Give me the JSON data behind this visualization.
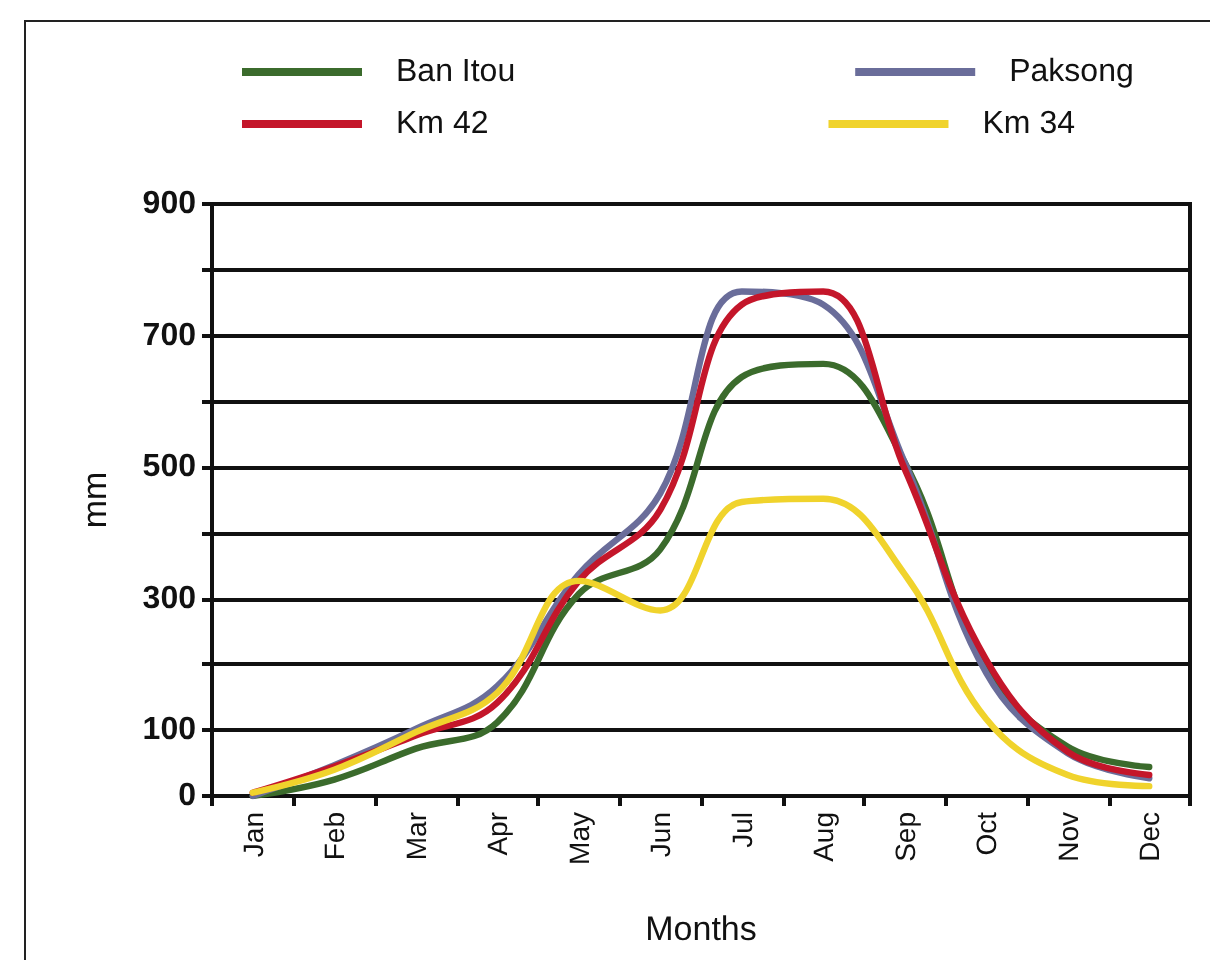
{
  "chart_data": {
    "type": "line",
    "xlabel": "Months",
    "ylabel": "mm",
    "categories": [
      "Jan",
      "Feb",
      "Mar",
      "Apr",
      "May",
      "Jun",
      "Jul",
      "Aug",
      "Sep",
      "Oct",
      "Nov",
      "Dec"
    ],
    "series": [
      {
        "name": "Ban Itou",
        "color": "#3b6b2c",
        "values": [
          0,
          25,
          72,
          112,
          307,
          375,
          637,
          657,
          507,
          195,
          75,
          44
        ]
      },
      {
        "name": "Paksong",
        "color": "#6a6d9a",
        "values": [
          0,
          47,
          102,
          167,
          337,
          460,
          767,
          747,
          507,
          187,
          65,
          27
        ]
      },
      {
        "name": "Km 42",
        "color": "#c4162a",
        "values": [
          5,
          45,
          92,
          142,
          327,
          435,
          747,
          767,
          497,
          207,
          67,
          32
        ]
      },
      {
        "name": "Km 34",
        "color": "#f0d32c",
        "values": [
          5,
          40,
          97,
          157,
          327,
          282,
          447,
          452,
          337,
          117,
          32,
          15
        ]
      }
    ],
    "ylim": [
      0,
      900
    ],
    "yticks": [
      0,
      100,
      {
        "value": 200,
        "label": null
      },
      300,
      {
        "value": 400,
        "label": null
      },
      500,
      {
        "value": 600,
        "label": null
      },
      700,
      {
        "value": 800,
        "label": null
      },
      900
    ],
    "grid": "y",
    "legend": "top",
    "marker": "none",
    "line_style": "solid"
  }
}
